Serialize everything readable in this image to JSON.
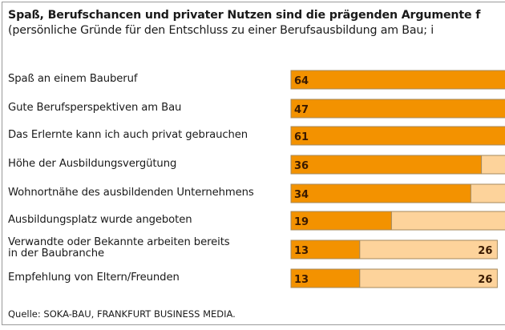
{
  "chart_data": {
    "type": "bar",
    "orientation": "horizontal-stacked",
    "title": "Spaß, Berufschancen und privater Nutzen sind die prägenden Argumente f",
    "subtitle": "(persönliche Gründe für den Entschluss zu einer Berufsausbildung am Bau; i",
    "categories": [
      "Spaß an einem Bauberuf",
      "Gute Berufsperspektiven am Bau",
      "Das Erlernte kann ich auch privat gebrauchen",
      "Höhe der Ausbildungsvergütung",
      "Wohnortnähe des ausbildenden Unternehmens",
      "Ausbildungsplatz wurde angeboten",
      "Verwandte oder Bekannte arbeiten bereits\nin der Baubranche",
      "Empfehlung von Eltern/Freunden"
    ],
    "series": [
      {
        "name": "primary",
        "color": "#f39200",
        "values": [
          64,
          47,
          61,
          36,
          34,
          19,
          13,
          13
        ],
        "labels": [
          "64",
          "47",
          "61",
          "36",
          "34",
          "19",
          "13",
          "13"
        ]
      },
      {
        "name": "secondary",
        "color": "#fdd39b",
        "values": [
          null,
          null,
          null,
          null,
          null,
          null,
          26,
          26
        ],
        "labels": [
          "",
          "",
          "",
          "",
          "",
          "",
          "26",
          "26"
        ]
      }
    ],
    "source": "Quelle: SOKA-BAU, FRANKFURT BUSINESS MEDIA.",
    "xlabel": "",
    "ylabel": "",
    "grid": false,
    "legend": "none"
  }
}
